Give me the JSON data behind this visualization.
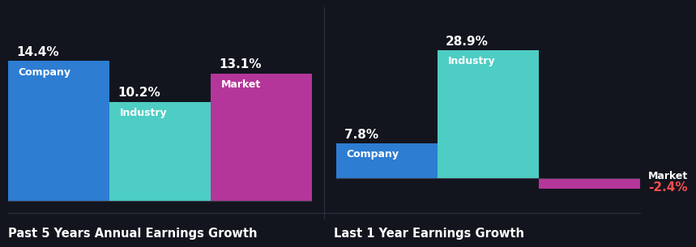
{
  "background_color": "#12151e",
  "left_chart": {
    "title": "Past 5 Years Annual Earnings Growth",
    "bars": [
      {
        "label": "Company",
        "value": 14.4,
        "color": "#2d7dd2"
      },
      {
        "label": "Industry",
        "value": 10.2,
        "color": "#4ecdc4"
      },
      {
        "label": "Market",
        "value": 13.1,
        "color": "#b5369a"
      }
    ]
  },
  "right_chart": {
    "title": "Last 1 Year Earnings Growth",
    "bars": [
      {
        "label": "Company",
        "value": 7.8,
        "color": "#2d7dd2"
      },
      {
        "label": "Industry",
        "value": 28.9,
        "color": "#4ecdc4"
      },
      {
        "label": "Market",
        "value": -2.4,
        "color": "#b5369a"
      }
    ]
  },
  "label_color": "#ffffff",
  "value_color_positive": "#ffffff",
  "value_color_negative": "#ff4d4d",
  "title_color": "#ffffff",
  "title_fontsize": 10.5,
  "bar_label_fontsize": 9,
  "value_fontsize": 11,
  "axis_line_color": "#3a3d4a",
  "separator_color": "#2a2d3a"
}
